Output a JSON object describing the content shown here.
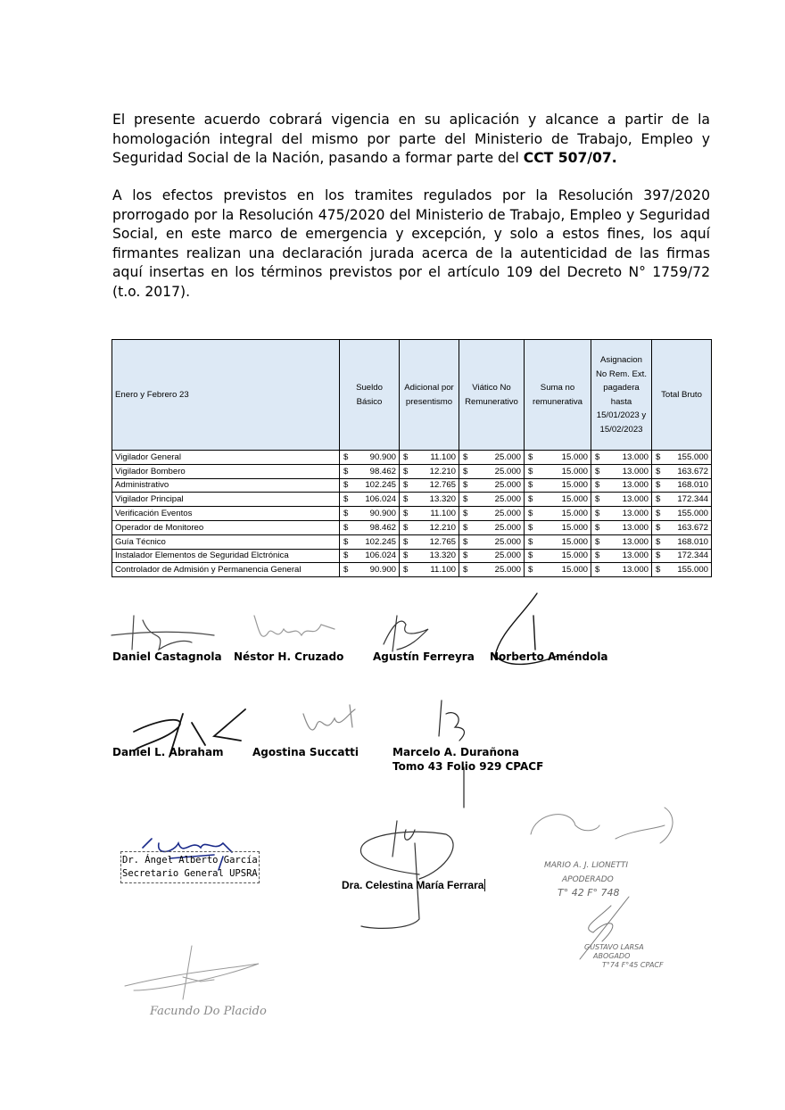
{
  "paragraphs": {
    "p1_text": "El presente acuerdo cobrará vigencia en su aplicación y alcance a partir de la homologación integral del mismo por parte del Ministerio de Trabajo, Empleo y Seguridad Social de la Nación, pasando a formar parte del ",
    "p1_bold": "CCT 507/07.",
    "p2_text": "A los efectos previstos en los tramites regulados por la Resolución 397/2020 prorrogado por la Resolución 475/2020 del Ministerio de Trabajo, Empleo y Seguridad Social, en este marco de emergencia y excepción, y solo a estos fines, los aquí firmantes realizan una declaración jurada acerca de la autenticidad de las firmas aquí insertas en los términos previstos por el artículo 109 del Decreto N° 1759/72 (t.o. 2017)."
  },
  "table": {
    "headers": [
      "Enero  y Febrero 23",
      "Sueldo Básico",
      "Adicional por presentismo",
      "Viático No Remunerativo",
      "Suma no remunerativa",
      "Asignacion No Rem. Ext. pagadera hasta 15/01/2023 y 15/02/2023",
      "Total Bruto"
    ],
    "currency": "$",
    "rows": [
      [
        "Vigilador General",
        "90.900",
        "11.100",
        "25.000",
        "15.000",
        "13.000",
        "155.000"
      ],
      [
        "Vigilador Bombero",
        "98.462",
        "12.210",
        "25.000",
        "15.000",
        "13.000",
        "163.672"
      ],
      [
        "Administrativo",
        "102.245",
        "12.765",
        "25.000",
        "15.000",
        "13.000",
        "168.010"
      ],
      [
        "Vigilador Principal",
        "106.024",
        "13.320",
        "25.000",
        "15.000",
        "13.000",
        "172.344"
      ],
      [
        "Verificación Eventos",
        "90.900",
        "11.100",
        "25.000",
        "15.000",
        "13.000",
        "155.000"
      ],
      [
        "Operador de Monitoreo",
        "98.462",
        "12.210",
        "25.000",
        "15.000",
        "13.000",
        "163.672"
      ],
      [
        "Guía Técnico",
        "102.245",
        "12.765",
        "25.000",
        "15.000",
        "13.000",
        "168.010"
      ],
      [
        "Instalador Elementos de Seguridad Elctrónica",
        "106.024",
        "13.320",
        "25.000",
        "15.000",
        "13.000",
        "172.344"
      ],
      [
        "Controlador de Admisión y Permanencia General",
        "90.900",
        "11.100",
        "25.000",
        "15.000",
        "13.000",
        "155.000"
      ]
    ],
    "header_bg": "#dde9f5"
  },
  "signatories": {
    "castagnola": "Daniel Castagnola",
    "cruzado": "Néstor H. Cruzado",
    "ferreyra": "Agustín Ferreyra",
    "amendola": "Norberto Améndola",
    "abraham": "Daniel L. Abraham",
    "succatti": "Agostina Succatti",
    "duranona": "Marcelo A. Durañona",
    "duranona_tomo": "Tomo 43 Folio 929 CPACF",
    "garcia_name": "Dr. Ángel Alberto García",
    "garcia_title": "Secretario General UPSRA",
    "ferrara": "Dra. Celestina María Ferrara"
  },
  "handwritten": {
    "lionetti": "Mario A. J. Lionetti Apoderado T° 42 F° 748",
    "larsa": "Gustavo Larsa Abogado T° 74 F° 45 CPACF",
    "placido": "Facundo Do Placido"
  }
}
